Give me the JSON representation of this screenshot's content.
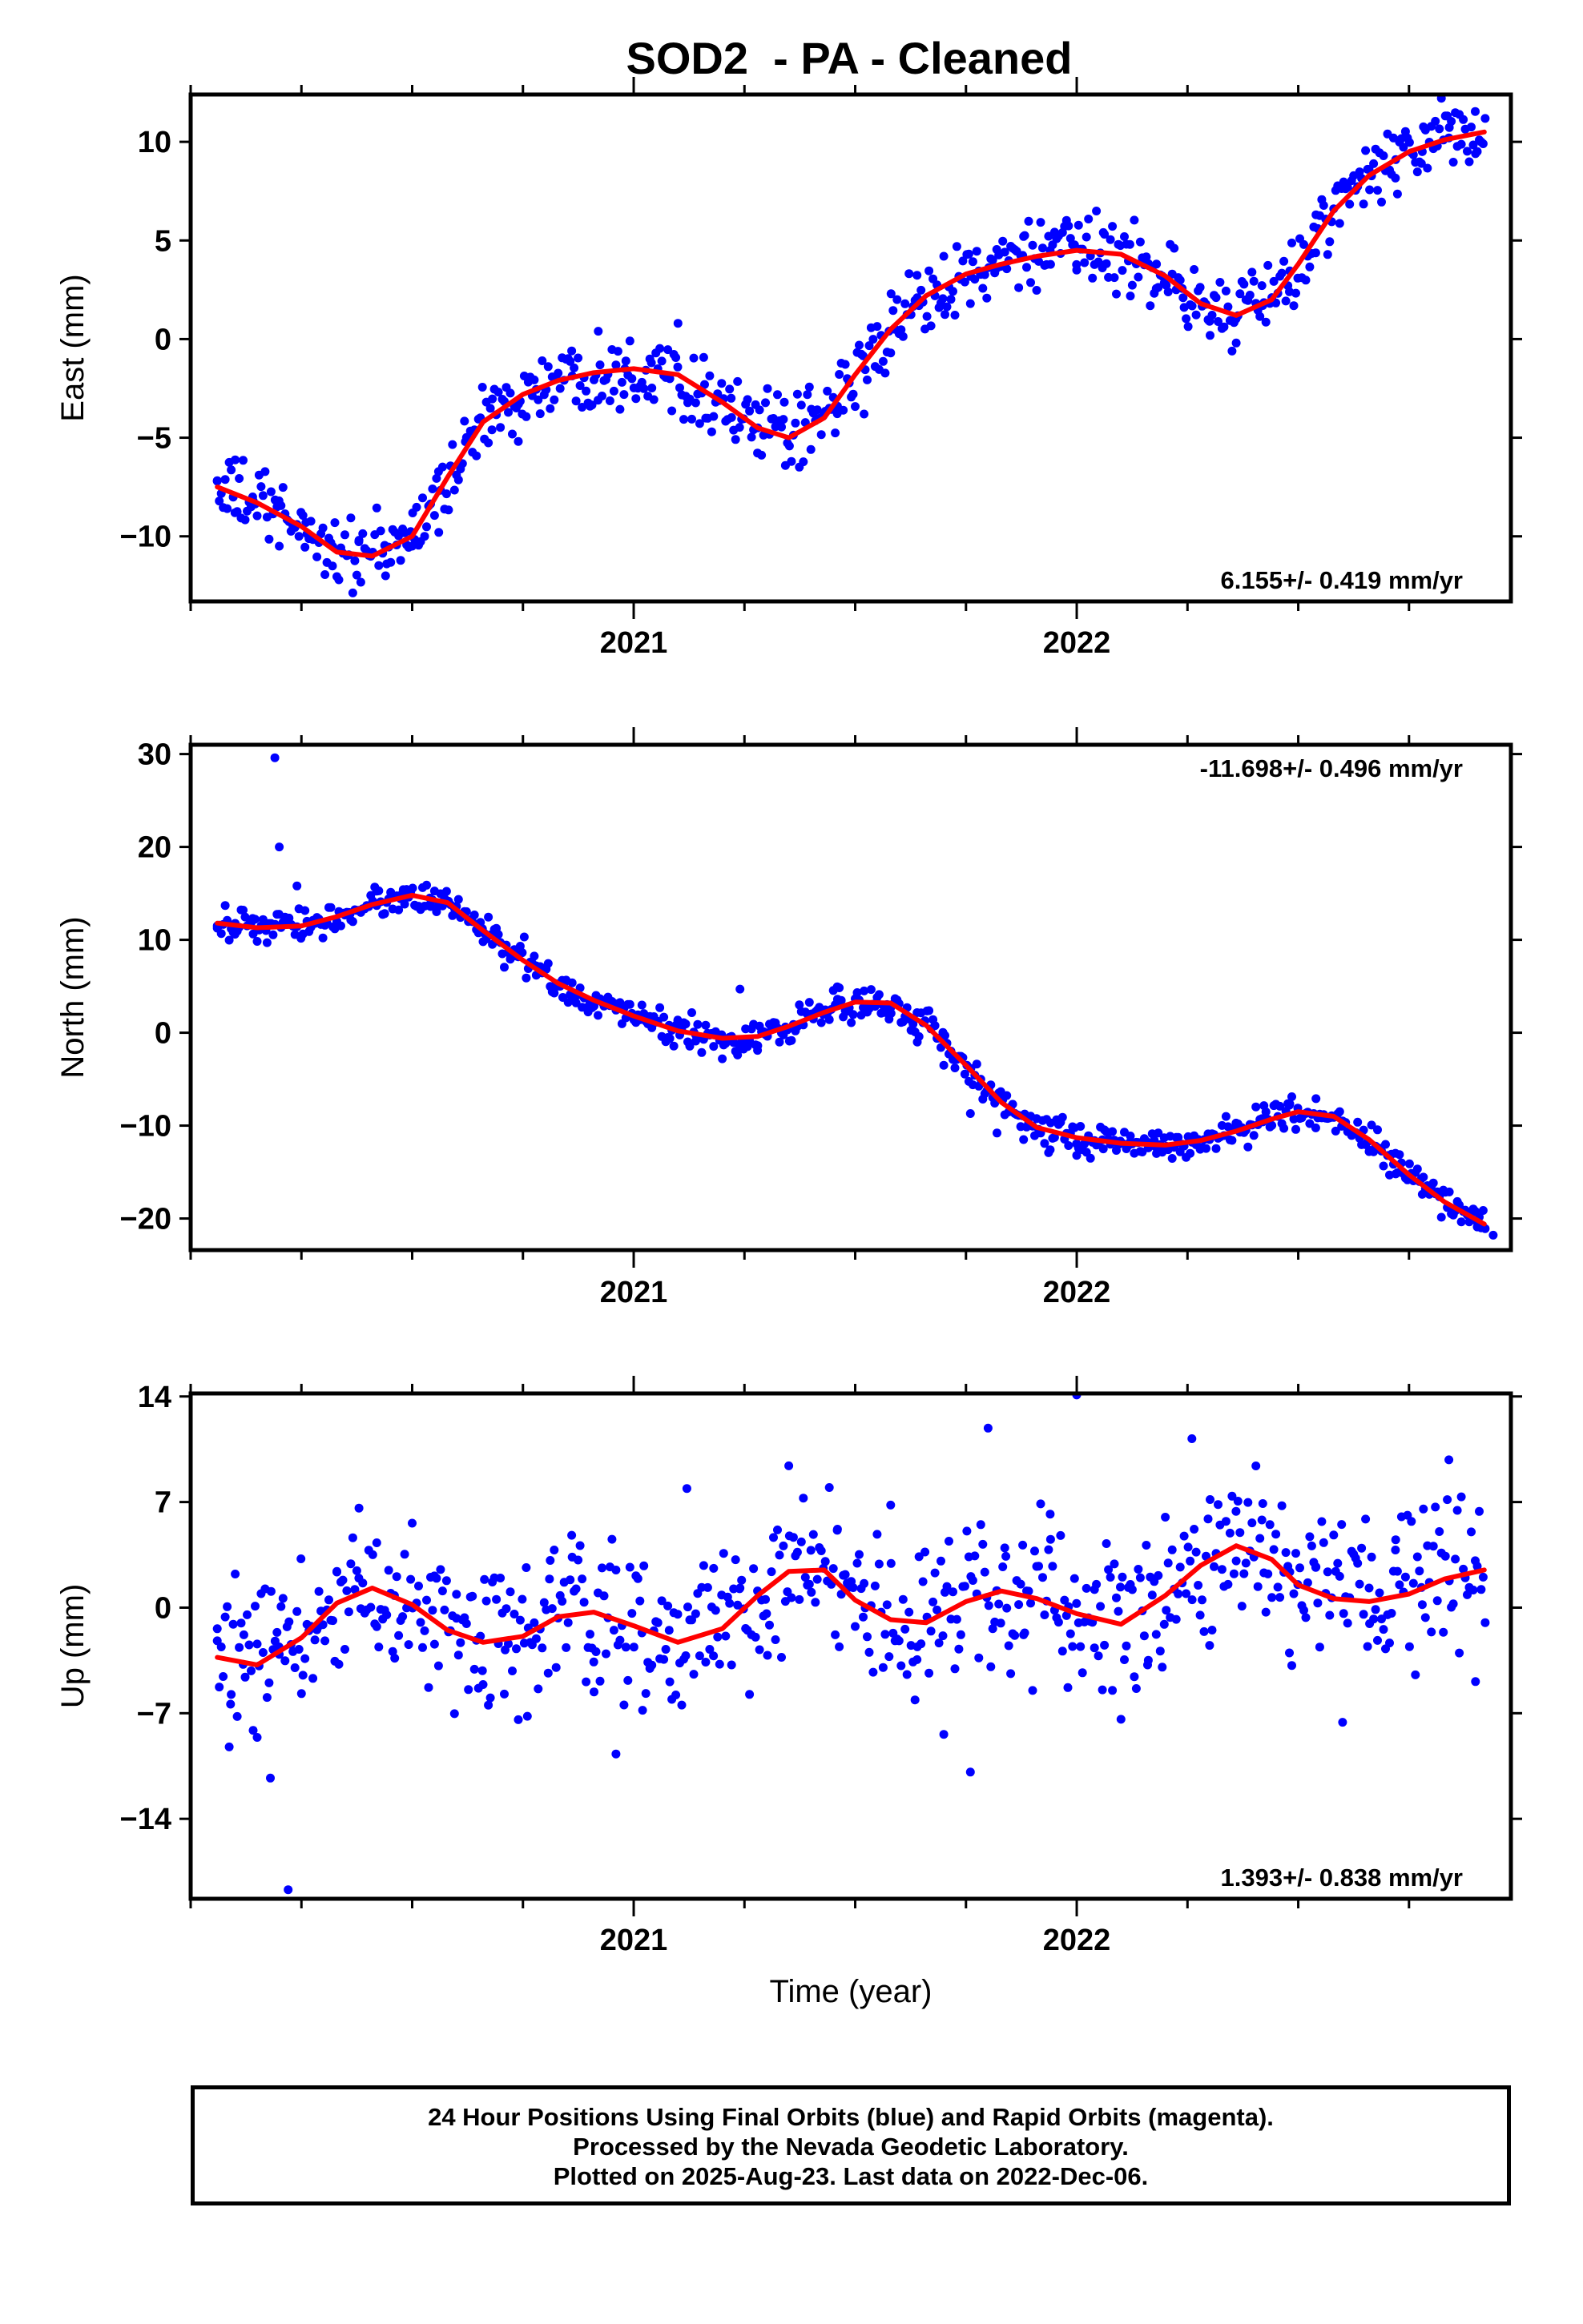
{
  "title": "SOD2  - PA - Cleaned",
  "xlabel": "Time (year)",
  "footer": {
    "line1": "24 Hour Positions Using Final Orbits (blue) and Rapid Orbits (magenta).",
    "line2": "Processed by the Nevada Geodetic Laboratory.",
    "line3": "Plotted on 2025-Aug-23. Last data on 2022-Dec-06."
  },
  "colors": {
    "points": "#0000ff",
    "fit": "#ff0000",
    "frame": "#000000"
  },
  "chart_data": [
    {
      "type": "scatter",
      "ylabel": "East (mm)",
      "rate": "6.155+/- 0.419 mm/yr",
      "xlim": [
        2020.0,
        2022.98
      ],
      "ylim": [
        -13.3,
        12.4
      ],
      "yticks": [
        -10,
        -5,
        0,
        5,
        10
      ],
      "xticks": [
        2021,
        2022
      ],
      "fit": {
        "x": [
          2020.06,
          2020.15,
          2020.25,
          2020.33,
          2020.41,
          2020.5,
          2020.58,
          2020.66,
          2020.75,
          2020.83,
          2020.91,
          2021.0,
          2021.1,
          2021.2,
          2021.28,
          2021.35,
          2021.43,
          2021.5,
          2021.58,
          2021.66,
          2021.75,
          2021.83,
          2021.91,
          2022.0,
          2022.1,
          2022.2,
          2022.28,
          2022.36,
          2022.44,
          2022.5,
          2022.58,
          2022.66,
          2022.75,
          2022.83,
          2022.92
        ],
        "y": [
          -7.5,
          -8.3,
          -9.5,
          -10.8,
          -11.0,
          -10.0,
          -7.0,
          -4.2,
          -2.8,
          -2.1,
          -1.7,
          -1.5,
          -1.8,
          -3.2,
          -4.5,
          -5.0,
          -4.0,
          -1.8,
          0.5,
          2.2,
          3.3,
          3.8,
          4.2,
          4.5,
          4.3,
          3.2,
          1.8,
          1.2,
          2.0,
          3.8,
          6.5,
          8.3,
          9.5,
          10.1,
          10.5
        ]
      },
      "series": {
        "x": [
          2020.06,
          2020.1,
          2020.14,
          2020.2,
          2020.26,
          2020.32,
          2020.38,
          2020.44,
          2020.5,
          2020.56,
          2020.62,
          2020.68,
          2020.74,
          2020.8,
          2020.86,
          2020.92,
          2020.98,
          2021.04,
          2021.1,
          2021.16,
          2021.22,
          2021.28,
          2021.34,
          2021.4,
          2021.46,
          2021.52,
          2021.58,
          2021.64,
          2021.7,
          2021.76,
          2021.82,
          2021.88,
          2021.94,
          2022.0,
          2022.06,
          2022.12,
          2022.18,
          2022.24,
          2022.3,
          2022.36,
          2022.42,
          2022.48,
          2022.54,
          2022.6,
          2022.66,
          2022.72,
          2022.78,
          2022.84,
          2022.9
        ],
        "y": [
          -7.2,
          -8.8,
          -8.0,
          -10.5,
          -9.3,
          -11.5,
          -10.2,
          -12.0,
          -10.5,
          -9.8,
          -5.2,
          -4.6,
          -3.3,
          -2.5,
          -0.6,
          0.4,
          -1.5,
          -1.2,
          0.8,
          -2.3,
          -3.0,
          -4.5,
          -3.2,
          -5.6,
          -3.4,
          -3.8,
          -0.7,
          2.1,
          4.2,
          1.8,
          3.6,
          5.2,
          4.5,
          3.5,
          5.4,
          4.8,
          3.8,
          2.1,
          0.9,
          -0.2,
          1.7,
          2.4,
          6.3,
          7.8,
          8.6,
          9.1,
          9.5,
          10.2,
          9.4
        ]
      }
    },
    {
      "type": "scatter",
      "ylabel": "North (mm)",
      "rate": "-11.698+/- 0.496 mm/yr",
      "xlim": [
        2020.0,
        2022.98
      ],
      "ylim": [
        -23.4,
        31.0
      ],
      "yticks": [
        -20,
        -10,
        0,
        10,
        20,
        30
      ],
      "xticks": [
        2021,
        2022
      ],
      "fit": {
        "x": [
          2020.06,
          2020.15,
          2020.25,
          2020.33,
          2020.41,
          2020.5,
          2020.58,
          2020.66,
          2020.75,
          2020.83,
          2020.91,
          2021.0,
          2021.1,
          2021.2,
          2021.28,
          2021.35,
          2021.43,
          2021.5,
          2021.58,
          2021.66,
          2021.75,
          2021.83,
          2021.91,
          2022.0,
          2022.1,
          2022.2,
          2022.28,
          2022.36,
          2022.44,
          2022.5,
          2022.58,
          2022.66,
          2022.75,
          2022.83,
          2022.92
        ],
        "y": [
          11.8,
          11.3,
          11.5,
          12.5,
          13.8,
          14.8,
          14.0,
          11.0,
          7.8,
          5.3,
          3.5,
          1.8,
          0.2,
          -0.6,
          -0.4,
          0.7,
          2.2,
          3.3,
          3.2,
          0.8,
          -3.5,
          -7.5,
          -10.2,
          -11.3,
          -11.9,
          -12.1,
          -11.6,
          -10.6,
          -9.3,
          -8.5,
          -9.0,
          -11.5,
          -15.3,
          -18.2,
          -20.6
        ]
      },
      "series": {
        "x": [
          2020.06,
          2020.1,
          2020.14,
          2020.17,
          2020.19,
          2020.2,
          2020.24,
          2020.3,
          2020.36,
          2020.42,
          2020.48,
          2020.54,
          2020.6,
          2020.66,
          2020.72,
          2020.78,
          2020.84,
          2020.9,
          2020.96,
          2021.02,
          2021.08,
          2021.14,
          2021.2,
          2021.24,
          2021.28,
          2021.34,
          2021.4,
          2021.46,
          2021.52,
          2021.58,
          2021.64,
          2021.7,
          2021.76,
          2021.82,
          2021.88,
          2021.94,
          2022.0,
          2022.06,
          2022.12,
          2022.18,
          2022.24,
          2022.3,
          2022.36,
          2022.42,
          2022.48,
          2022.54,
          2022.6,
          2022.66,
          2022.72,
          2022.78,
          2022.84,
          2022.9,
          2022.94
        ],
        "y": [
          11.5,
          10.6,
          12.3,
          11.0,
          29.6,
          20.0,
          15.8,
          11.8,
          12.8,
          13.7,
          15.4,
          14.5,
          13.6,
          9.8,
          8.5,
          6.2,
          3.8,
          2.6,
          3.1,
          1.5,
          0.8,
          -0.9,
          -2.8,
          4.7,
          -1.4,
          0.2,
          1.9,
          3.6,
          4.5,
          2.7,
          -1.0,
          -3.5,
          -8.7,
          -10.8,
          -11.5,
          -12.6,
          -13.2,
          -12.5,
          -11.8,
          -13.0,
          -12.2,
          -11.5,
          -10.2,
          -9.6,
          -7.8,
          -7.1,
          -9.5,
          -12.8,
          -15.2,
          -17.4,
          -18.8,
          -20.2,
          -21.8
        ]
      }
    },
    {
      "type": "scatter",
      "ylabel": "Up (mm)",
      "rate": "1.393+/- 0.838 mm/yr",
      "xlim": [
        2020.0,
        2022.98
      ],
      "ylim": [
        -19.3,
        14.2
      ],
      "yticks": [
        -14,
        -7,
        0,
        7,
        14
      ],
      "xticks": [
        2021,
        2022
      ],
      "fit": {
        "x": [
          2020.06,
          2020.15,
          2020.25,
          2020.33,
          2020.41,
          2020.5,
          2020.58,
          2020.66,
          2020.75,
          2020.83,
          2020.91,
          2021.0,
          2021.1,
          2021.2,
          2021.28,
          2021.35,
          2021.43,
          2021.5,
          2021.58,
          2021.66,
          2021.75,
          2021.83,
          2021.91,
          2022.0,
          2022.1,
          2022.2,
          2022.28,
          2022.36,
          2022.44,
          2022.5,
          2022.58,
          2022.66,
          2022.75,
          2022.83,
          2022.92
        ],
        "y": [
          -3.3,
          -3.8,
          -2.0,
          0.3,
          1.3,
          0.2,
          -1.5,
          -2.3,
          -1.9,
          -0.6,
          -0.3,
          -1.2,
          -2.3,
          -1.4,
          0.8,
          2.4,
          2.5,
          0.5,
          -0.8,
          -1.0,
          0.4,
          1.1,
          0.6,
          -0.4,
          -1.1,
          0.8,
          2.8,
          4.1,
          3.2,
          1.5,
          0.6,
          0.4,
          0.9,
          1.9,
          2.5
        ]
      },
      "series": {
        "x": [
          2020.06,
          2020.09,
          2020.12,
          2020.15,
          2020.18,
          2020.2,
          2020.22,
          2020.25,
          2020.29,
          2020.33,
          2020.38,
          2020.42,
          2020.46,
          2020.5,
          2020.55,
          2020.6,
          2020.66,
          2020.71,
          2020.76,
          2020.81,
          2020.86,
          2020.91,
          2020.96,
          2021.02,
          2021.08,
          2021.12,
          2021.18,
          2021.24,
          2021.3,
          2021.35,
          2021.4,
          2021.46,
          2021.52,
          2021.58,
          2021.64,
          2021.7,
          2021.76,
          2021.8,
          2021.84,
          2021.88,
          2021.94,
          2021.98,
          2022.0,
          2022.04,
          2022.1,
          2022.16,
          2022.2,
          2022.26,
          2022.3,
          2022.36,
          2022.42,
          2022.48,
          2022.54,
          2022.6,
          2022.66,
          2022.72,
          2022.78,
          2022.84,
          2022.9
        ],
        "y": [
          -2.2,
          -6.4,
          -1.8,
          -8.6,
          -11.3,
          -3.1,
          -18.7,
          -5.7,
          -1.2,
          2.4,
          6.6,
          4.3,
          0.8,
          5.6,
          2.1,
          -0.7,
          -5.1,
          -2.8,
          -7.2,
          1.9,
          4.8,
          -3.6,
          -9.7,
          -6.8,
          -1.5,
          7.9,
          -3.2,
          1.3,
          -0.4,
          9.4,
          3.8,
          5.2,
          1.6,
          6.8,
          -2.6,
          -8.4,
          -10.9,
          11.9,
          3.4,
          -1.8,
          6.2,
          -5.3,
          14.1,
          1.2,
          -7.4,
          -3.8,
          6.0,
          11.2,
          -2.5,
          3.1,
          6.9,
          -3.0,
          2.7,
          -7.6,
          1.3,
          4.5,
          0.2,
          9.8,
          -4.9
        ]
      }
    }
  ]
}
